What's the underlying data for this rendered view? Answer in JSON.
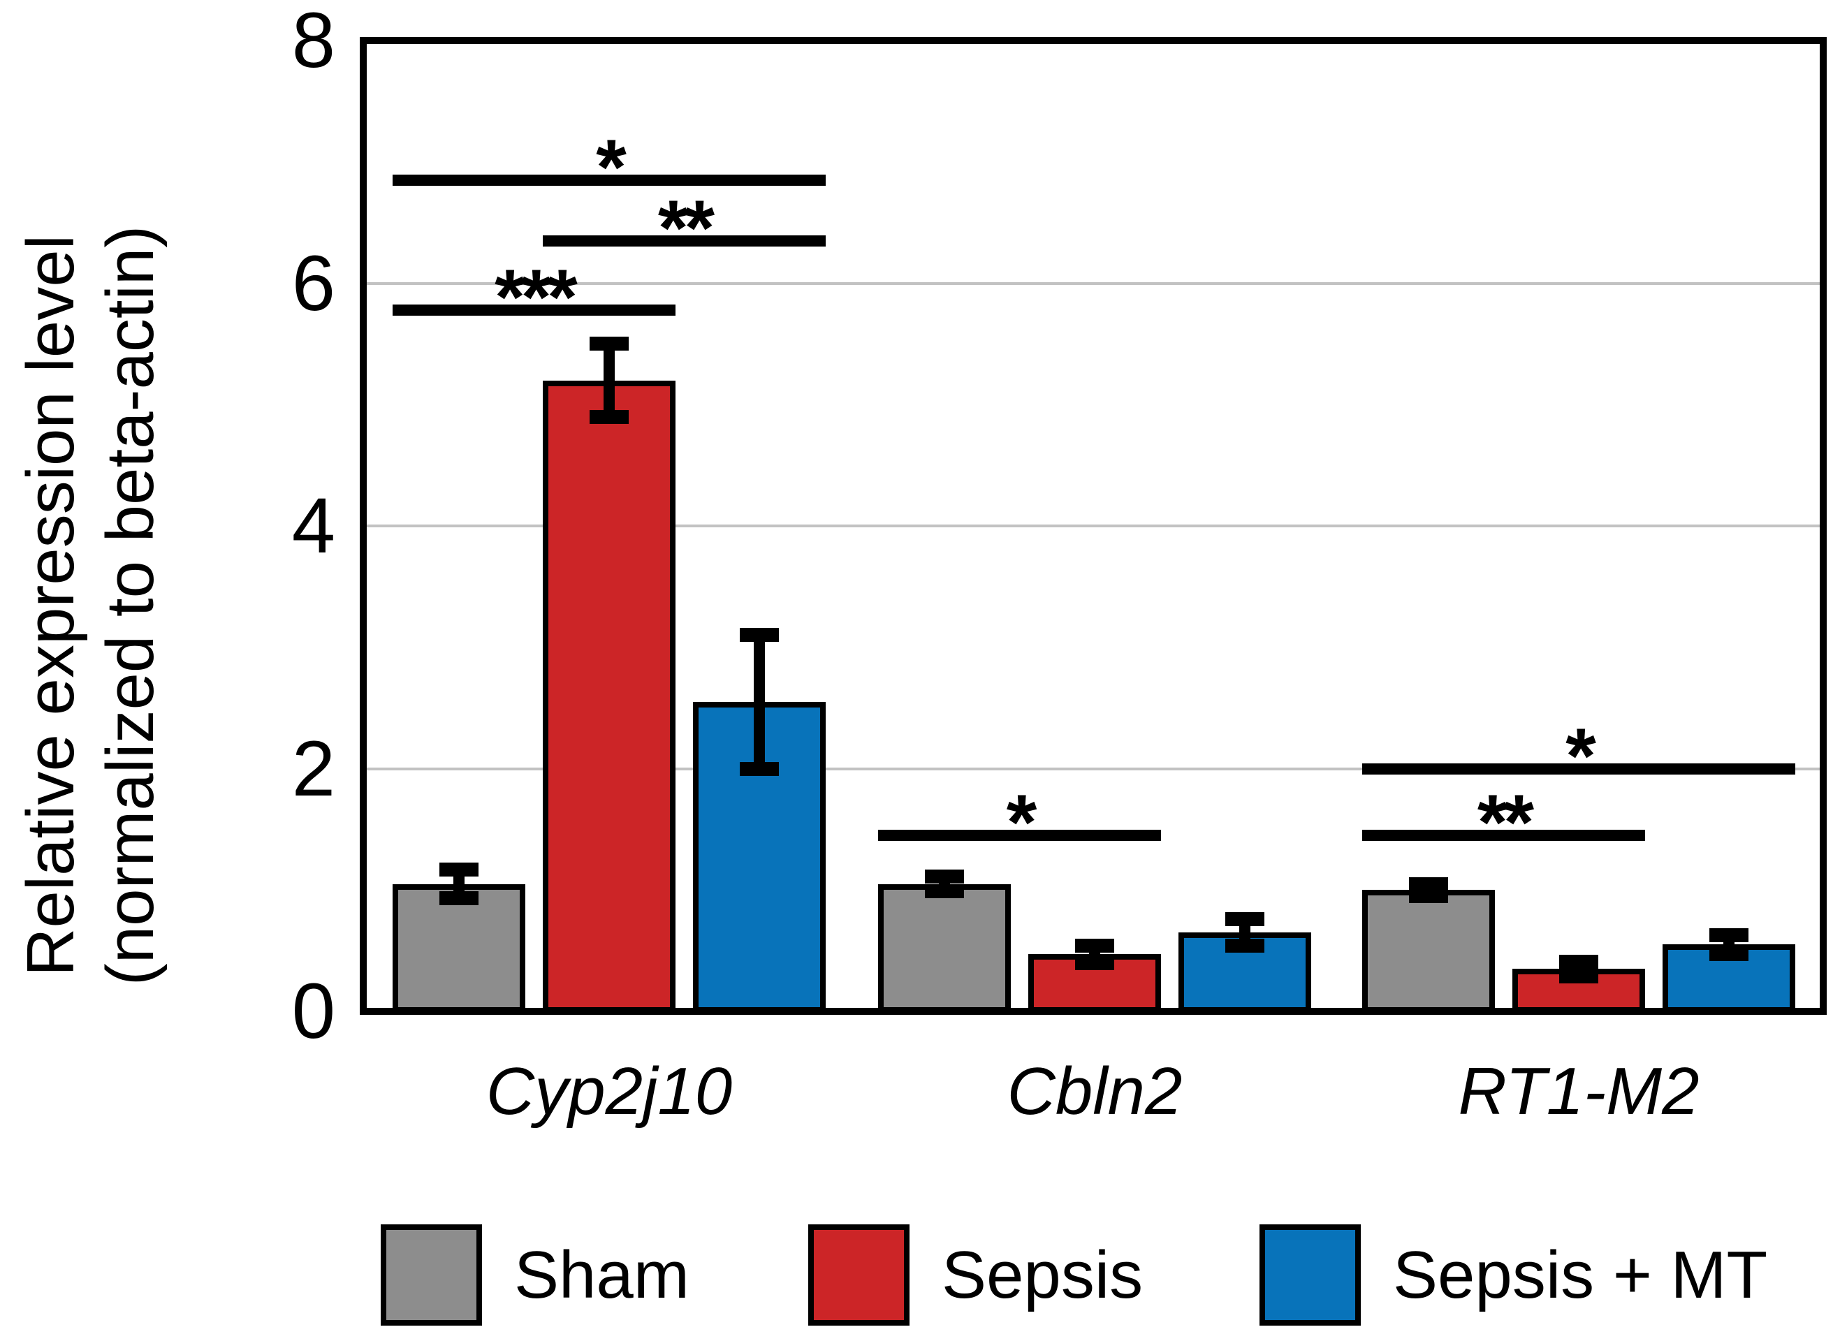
{
  "figure": {
    "background": "#FFFFFF"
  },
  "ylabel": {
    "line1": "Relative expression level",
    "line2": "(normalized to beta-actin)"
  },
  "chart_data": {
    "type": "bar",
    "grouped": true,
    "title": "",
    "xlabel": "",
    "ylabel": "Relative expression level (normalized to beta-actin)",
    "categories": [
      "Cyp2j10",
      "Cbln2",
      "RT1-M2"
    ],
    "categories_style": "italic",
    "ylim": [
      0,
      8
    ],
    "yticks": [
      0,
      2,
      4,
      6,
      8
    ],
    "ytick_labels": [
      "0",
      "2",
      "4",
      "6",
      "8"
    ],
    "gridlines_at": [
      2,
      4,
      6
    ],
    "gridline_color": "#C2C2C2",
    "bar_outline_color": "#000000",
    "error_bar_color": "#000000",
    "legend_position": "bottom",
    "series": [
      {
        "name": "Sham",
        "color": "#8D8D8D",
        "values": [
          1.05,
          1.05,
          1.0
        ],
        "errors": [
          0.12,
          0.06,
          0.05
        ]
      },
      {
        "name": "Sepsis",
        "color": "#CC2527",
        "values": [
          5.2,
          0.47,
          0.35
        ],
        "errors": [
          0.3,
          0.07,
          0.06
        ]
      },
      {
        "name": "Sepsis + MT",
        "color": "#0873BA",
        "values": [
          2.55,
          0.65,
          0.55
        ],
        "errors": [
          0.55,
          0.11,
          0.08
        ]
      }
    ],
    "significance": [
      {
        "category": 0,
        "from_series": 0,
        "to_series": 1,
        "label": "***",
        "y": 5.78
      },
      {
        "category": 0,
        "from_series": 1,
        "to_series": 2,
        "label": "**",
        "y": 6.35
      },
      {
        "category": 0,
        "from_series": 0,
        "to_series": 2,
        "label": "*",
        "y": 6.85
      },
      {
        "category": 1,
        "from_series": 0,
        "to_series": 1,
        "label": "*",
        "y": 1.45
      },
      {
        "category": 2,
        "from_series": 0,
        "to_series": 1,
        "label": "**",
        "y": 1.45
      },
      {
        "category": 2,
        "from_series": 0,
        "to_series": 2,
        "label": "*",
        "y": 2.0
      }
    ]
  }
}
